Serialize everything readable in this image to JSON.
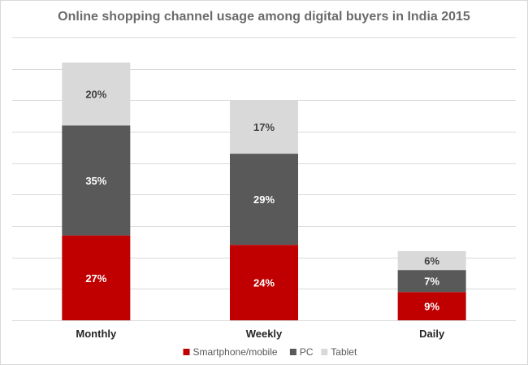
{
  "chart_data": {
    "type": "stacked-bar",
    "title": "Online shopping channel usage among digital buyers in India 2015",
    "xlabel": "",
    "ylabel": "",
    "categories": [
      "Monthly",
      "Weekly",
      "Daily"
    ],
    "series": [
      {
        "name": "Smartphone/mobile",
        "color": "#c00000",
        "label_color": "#ffffff",
        "values": [
          27,
          24,
          9
        ],
        "labels": [
          "27%",
          "24%",
          "9%"
        ]
      },
      {
        "name": "PC",
        "color": "#595959",
        "label_color": "#ffffff",
        "values": [
          35,
          29,
          7
        ],
        "labels": [
          "35%",
          "29%",
          "7%"
        ]
      },
      {
        "name": "Tablet",
        "color": "#d9d9d9",
        "label_color": "#404040",
        "values": [
          20,
          17,
          6
        ],
        "labels": [
          "20%",
          "17%",
          "6%"
        ]
      }
    ],
    "ylim": [
      0,
      90
    ],
    "grid": true,
    "legend_position": "bottom"
  }
}
